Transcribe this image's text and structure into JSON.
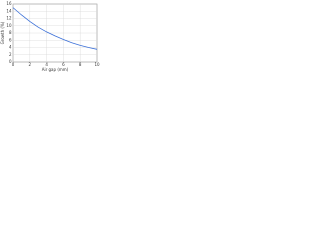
{
  "chart_data": {
    "type": "line",
    "x_label": "Air gap (mm)",
    "y_label": "Growth (%)",
    "x": [
      0,
      1,
      2,
      3,
      4,
      5,
      6,
      7,
      8,
      9,
      10
    ],
    "series": [
      {
        "name": "Growth",
        "color": "#3a6fd8",
        "values": [
          15,
          13,
          11.2,
          9.6,
          8.3,
          7.2,
          6.2,
          5.3,
          4.6,
          4,
          3.5
        ]
      }
    ],
    "xlim": [
      0,
      10
    ],
    "xticks": [
      0,
      2,
      4,
      6,
      8,
      10
    ],
    "ylim": [
      0,
      16
    ],
    "yticks": [
      0,
      2,
      4,
      6,
      8,
      10,
      12,
      14,
      16
    ],
    "grid": true
  }
}
